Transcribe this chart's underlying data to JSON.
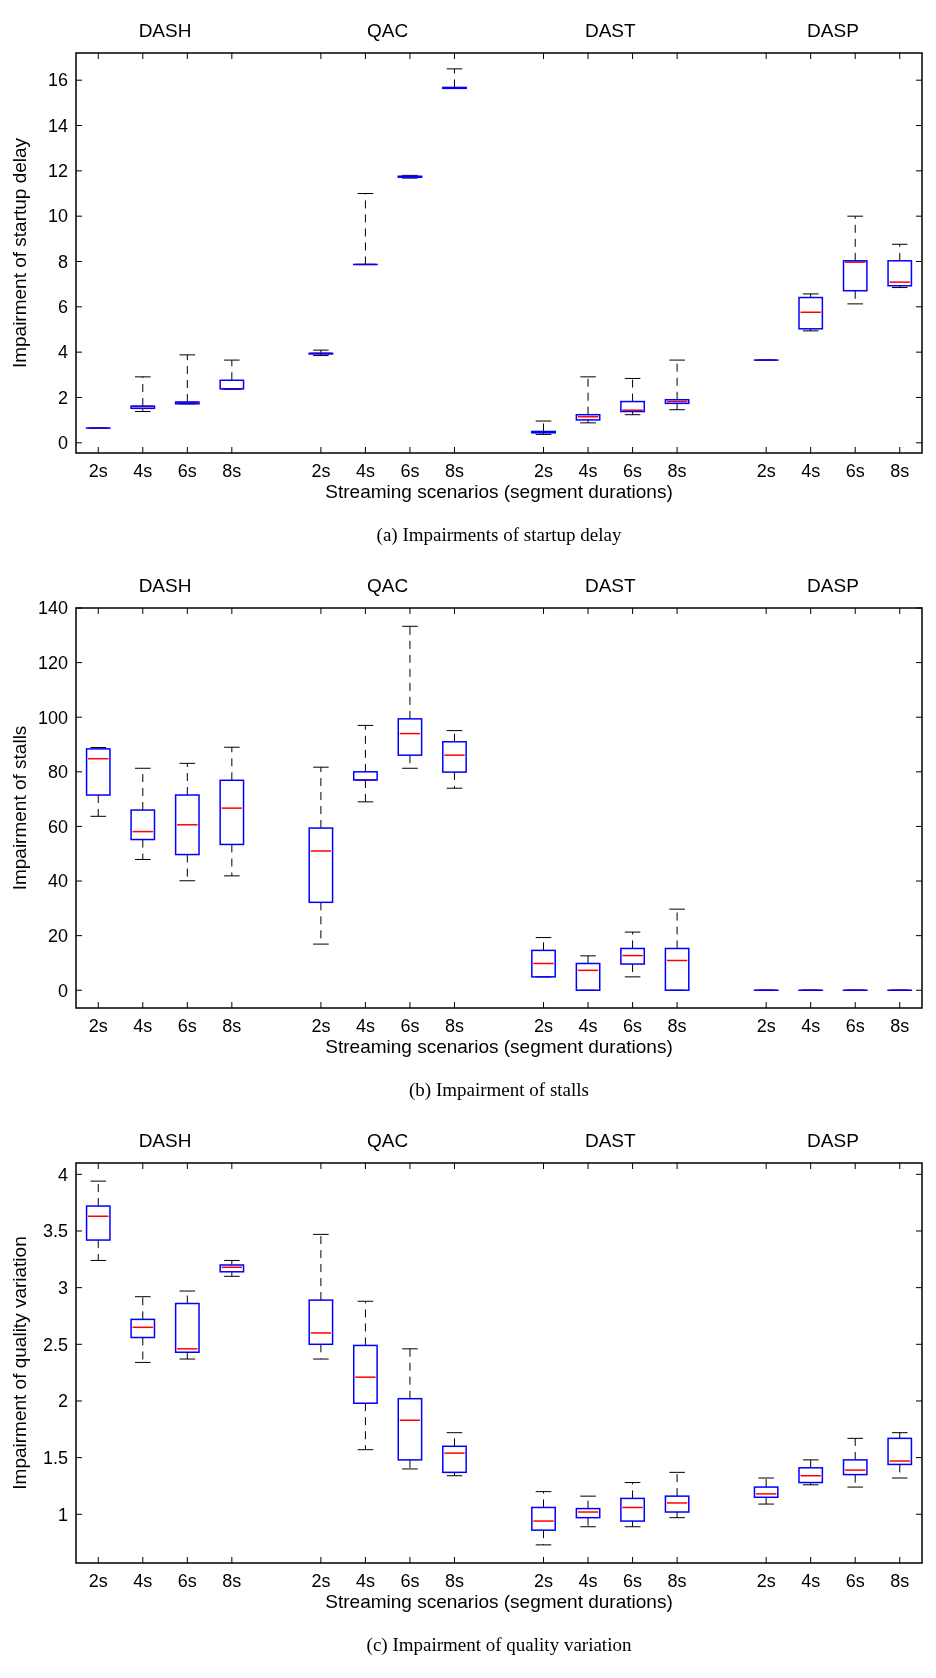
{
  "chart_data": [
    {
      "type": "box",
      "title": "(a) Impairments of startup delay",
      "xlabel": "Streaming scenarios (segment durations)",
      "ylabel": "Impairment of startup delay",
      "annotations": [
        "DASH",
        "QAC",
        "DAST",
        "DASP"
      ],
      "categories": [
        "2s",
        "4s",
        "6s",
        "8s",
        null,
        "2s",
        "4s",
        "6s",
        "8s",
        null,
        "2s",
        "4s",
        "6s",
        "8s",
        null,
        "2s",
        "4s",
        "6s",
        "8s"
      ],
      "ylim": [
        -0.45,
        17.2
      ],
      "yticks": [
        0,
        2,
        4,
        6,
        8,
        10,
        12,
        14,
        16
      ],
      "grid": false,
      "series": [
        {
          "color": "#0000ff",
          "boxes": [
            {
              "low": 0.65,
              "q1": 0.65,
              "median": 0.65,
              "q3": 0.65,
              "high": 0.65
            },
            {
              "low": 1.38,
              "q1": 1.52,
              "median": 1.6,
              "q3": 1.62,
              "high": 2.91
            },
            {
              "low": 1.72,
              "q1": 1.72,
              "median": 1.78,
              "q3": 1.8,
              "high": 3.88
            },
            {
              "low": 2.35,
              "q1": 2.38,
              "median": 2.38,
              "q3": 2.76,
              "high": 3.65
            },
            null,
            {
              "low": 3.85,
              "q1": 3.92,
              "median": 3.95,
              "q3": 3.95,
              "high": 4.09
            },
            {
              "low": 7.87,
              "q1": 7.87,
              "median": 7.87,
              "q3": 7.87,
              "high": 11.0
            },
            {
              "low": 11.68,
              "q1": 11.72,
              "median": 11.75,
              "q3": 11.76,
              "high": 11.8
            },
            {
              "low": 15.64,
              "q1": 15.64,
              "median": 15.65,
              "q3": 15.68,
              "high": 16.5
            },
            null,
            {
              "low": 0.37,
              "q1": 0.44,
              "median": 0.47,
              "q3": 0.5,
              "high": 0.96
            },
            {
              "low": 0.88,
              "q1": 1.01,
              "median": 1.15,
              "q3": 1.24,
              "high": 2.91
            },
            {
              "low": 1.24,
              "q1": 1.38,
              "median": 1.44,
              "q3": 1.82,
              "high": 2.84
            },
            {
              "low": 1.46,
              "q1": 1.74,
              "median": 1.82,
              "q3": 1.9,
              "high": 3.65
            },
            null,
            {
              "low": 3.65,
              "q1": 3.65,
              "median": 3.65,
              "q3": 3.65,
              "high": 3.65
            },
            {
              "low": 4.94,
              "q1": 5.03,
              "median": 5.76,
              "q3": 6.41,
              "high": 6.57
            },
            {
              "low": 6.13,
              "q1": 6.71,
              "median": 7.97,
              "q3": 8.03,
              "high": 10.0
            },
            {
              "low": 6.85,
              "q1": 6.93,
              "median": 7.09,
              "q3": 8.03,
              "high": 8.76
            }
          ]
        }
      ]
    },
    {
      "type": "box",
      "title": "(b) Impairment of stalls",
      "xlabel": "Streaming scenarios (segment durations)",
      "ylabel": "Impairment of stalls",
      "annotations": [
        "DASH",
        "QAC",
        "DAST",
        "DASP"
      ],
      "categories": [
        "2s",
        "4s",
        "6s",
        "8s",
        null,
        "2s",
        "4s",
        "6s",
        "8s",
        null,
        "2s",
        "4s",
        "6s",
        "8s",
        null,
        "2s",
        "4s",
        "6s",
        "8s"
      ],
      "ylim": [
        -6.5,
        140
      ],
      "yticks": [
        0,
        20,
        40,
        60,
        80,
        100,
        120,
        140
      ],
      "grid": false,
      "series": [
        {
          "color": "#0000ff",
          "boxes": [
            {
              "low": 63.7,
              "q1": 71.5,
              "median": 84.8,
              "q3": 88.4,
              "high": 88.9
            },
            {
              "low": 47.9,
              "q1": 55.2,
              "median": 58.1,
              "q3": 66,
              "high": 81.3
            },
            {
              "low": 40.1,
              "q1": 49.7,
              "median": 60.6,
              "q3": 71.5,
              "high": 83.1
            },
            {
              "low": 41.9,
              "q1": 53.4,
              "median": 66.7,
              "q3": 76.9,
              "high": 89
            },
            null,
            {
              "low": 16.9,
              "q1": 32.2,
              "median": 51,
              "q3": 59.4,
              "high": 81.7
            },
            {
              "low": 69,
              "q1": 77,
              "median": 77,
              "q3": 80,
              "high": 97
            },
            {
              "low": 81.3,
              "q1": 86.1,
              "median": 94,
              "q3": 99.4,
              "high": 133.3
            },
            {
              "low": 74,
              "q1": 79.9,
              "median": 86.1,
              "q3": 91,
              "high": 95.1
            },
            null,
            {
              "low": 4.9,
              "q1": 4.9,
              "median": 9.8,
              "q3": 14.6,
              "high": 19.3
            },
            {
              "low": 0,
              "q1": 0,
              "median": 7.3,
              "q3": 9.8,
              "high": 12.6
            },
            {
              "low": 4.9,
              "q1": 9.6,
              "median": 12.7,
              "q3": 15.3,
              "high": 21.3
            },
            {
              "low": 0,
              "q1": 0,
              "median": 10.9,
              "q3": 15.3,
              "high": 29.7
            },
            null,
            {
              "low": 0,
              "q1": 0,
              "median": 0,
              "q3": 0,
              "high": 0
            },
            {
              "low": 0,
              "q1": 0,
              "median": 0,
              "q3": 0,
              "high": 0
            },
            {
              "low": 0,
              "q1": 0,
              "median": 0,
              "q3": 0,
              "high": 0
            },
            {
              "low": 0,
              "q1": 0,
              "median": 0,
              "q3": 0,
              "high": 0
            }
          ]
        }
      ]
    },
    {
      "type": "box",
      "title": "(c) Impairment of quality variation",
      "xlabel": "Streaming scenarios (segment durations)",
      "ylabel": "Impairment of quality variation",
      "annotations": [
        "DASH",
        "QAC",
        "DAST",
        "DASP"
      ],
      "categories": [
        "2s",
        "4s",
        "6s",
        "8s",
        null,
        "2s",
        "4s",
        "6s",
        "8s",
        null,
        "2s",
        "4s",
        "6s",
        "8s",
        null,
        "2s",
        "4s",
        "6s",
        "8s"
      ],
      "ylim": [
        0.57,
        4.1
      ],
      "yticks": [
        1,
        1.5,
        2,
        2.5,
        3,
        3.5,
        4
      ],
      "grid": false,
      "series": [
        {
          "color": "#0000ff",
          "boxes": [
            {
              "low": 3.24,
              "q1": 3.42,
              "median": 3.63,
              "q3": 3.72,
              "high": 3.94
            },
            {
              "low": 2.34,
              "q1": 2.56,
              "median": 2.65,
              "q3": 2.72,
              "high": 2.92
            },
            {
              "low": 2.37,
              "q1": 2.43,
              "median": 2.46,
              "q3": 2.86,
              "high": 2.97
            },
            {
              "low": 3.1,
              "q1": 3.14,
              "median": 3.18,
              "q3": 3.2,
              "high": 3.24
            },
            null,
            {
              "low": 2.37,
              "q1": 2.5,
              "median": 2.6,
              "q3": 2.89,
              "high": 3.47
            },
            {
              "low": 1.57,
              "q1": 1.98,
              "median": 2.21,
              "q3": 2.49,
              "high": 2.88
            },
            {
              "low": 1.4,
              "q1": 1.48,
              "median": 1.83,
              "q3": 2.02,
              "high": 2.46
            },
            {
              "low": 1.34,
              "q1": 1.37,
              "median": 1.54,
              "q3": 1.6,
              "high": 1.72
            },
            null,
            {
              "low": 0.73,
              "q1": 0.86,
              "median": 0.94,
              "q3": 1.06,
              "high": 1.2
            },
            {
              "low": 0.89,
              "q1": 0.97,
              "median": 1.02,
              "q3": 1.05,
              "high": 1.16
            },
            {
              "low": 0.89,
              "q1": 0.94,
              "median": 1.06,
              "q3": 1.14,
              "high": 1.28
            },
            {
              "low": 0.97,
              "q1": 1.02,
              "median": 1.1,
              "q3": 1.16,
              "high": 1.37
            },
            null,
            {
              "low": 1.09,
              "q1": 1.15,
              "median": 1.18,
              "q3": 1.24,
              "high": 1.32
            },
            {
              "low": 1.26,
              "q1": 1.28,
              "median": 1.34,
              "q3": 1.41,
              "high": 1.48
            },
            {
              "low": 1.24,
              "q1": 1.35,
              "median": 1.39,
              "q3": 1.48,
              "high": 1.67
            },
            {
              "low": 1.32,
              "q1": 1.44,
              "median": 1.47,
              "q3": 1.67,
              "high": 1.72
            }
          ]
        }
      ]
    }
  ]
}
